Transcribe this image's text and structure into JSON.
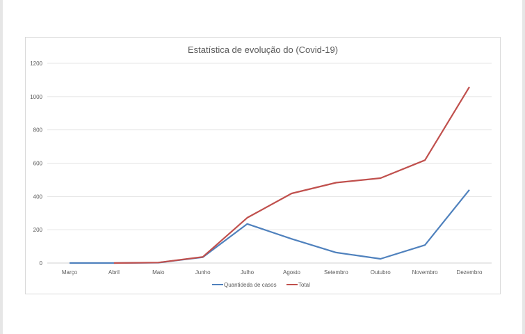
{
  "chart_data": {
    "type": "line",
    "title": "Estatística de evolução do (Covid-19)",
    "xlabel": "",
    "ylabel": "",
    "categories": [
      "Março",
      "Abril",
      "Maio",
      "Junho",
      "Julho",
      "Agosto",
      "Setembro",
      "Outubro",
      "Novembro",
      "Dezembro"
    ],
    "ylim": [
      0,
      1200
    ],
    "yticks": [
      "0",
      "200",
      "400",
      "600",
      "800",
      "1000",
      "1200"
    ],
    "grid": true,
    "legend_position": "bottom",
    "series": [
      {
        "name": "Quantideda de casos",
        "color": "#4f81bd",
        "values": [
          0,
          0,
          2,
          35,
          235,
          145,
          63,
          25,
          108,
          440
        ]
      },
      {
        "name": "Total",
        "color": "#c0504d",
        "values": [
          null,
          0,
          3,
          37,
          272,
          418,
          483,
          510,
          618,
          1058
        ]
      }
    ]
  }
}
